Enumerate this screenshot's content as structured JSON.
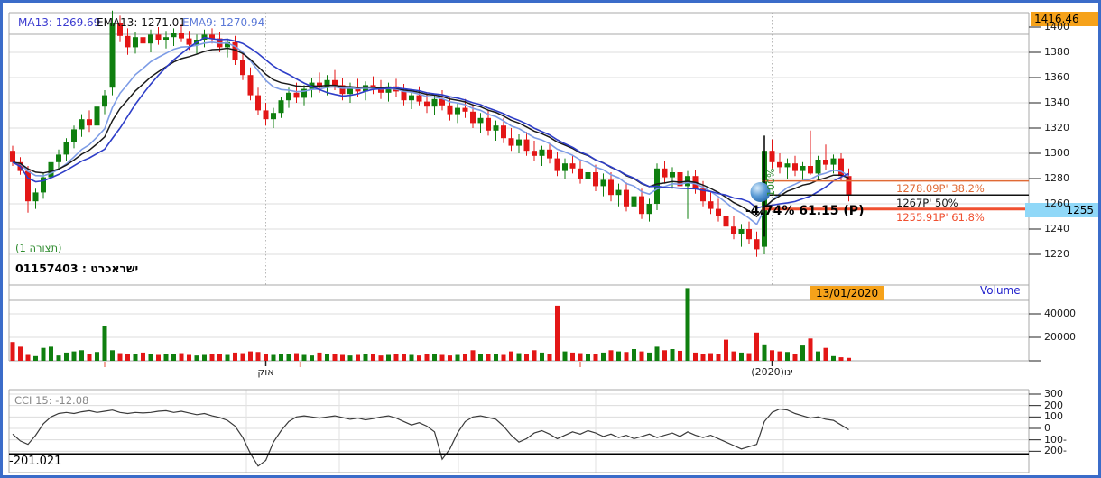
{
  "window": {
    "border_color": "#3b6cc9"
  },
  "legend": {
    "ma13_label": "MA13: 1269.69",
    "ema13_label": "EMA13: 1271.01",
    "ema9_label": "EMA9: 1270.94"
  },
  "labels": {
    "config": "(תצורה 1)",
    "instrument": "01157403 : ישראכרט",
    "date_marker": "13/01/2020",
    "volume_title": "Volume",
    "cci_title": "CCI 15: -12.08",
    "cci_low": "-201.021"
  },
  "colors": {
    "up": "#0f7f0f",
    "down": "#e31616",
    "ma13": "#2e3ec8",
    "ema13": "#1a1a1a",
    "ema9": "#7d9ce6",
    "legend_ma13": "#3b3bd0",
    "legend_ema13": "#101010",
    "legend_ema9": "#5c7ad8",
    "fib_382": "#e06a35",
    "fib_50": "#111111",
    "fib_618": "#f05030",
    "marker_bg": "#f6a21a",
    "band_bg": "#90d8f8",
    "volume_title": "#2323cc",
    "config_green": "#2e8b2e",
    "cci_line": "#3a3a3a",
    "grid": "#dcdcdc",
    "border": "#a8a8a8"
  },
  "chart_data": {
    "type": "candlestick",
    "title": "01157403 : ישראכרט",
    "panes": [
      "price with MA13/EMA13/EMA9 overlays and Fibonacci retracement",
      "volume",
      "CCI 15"
    ],
    "price_axis_ticks": [
      1400,
      1380,
      1360,
      1340,
      1320,
      1300,
      1280,
      1260,
      1240,
      1220
    ],
    "volume_axis_ticks": [
      40000,
      20000
    ],
    "cci_axis_ticks": [
      "300",
      "200",
      "100",
      "0",
      "100-",
      "200-"
    ],
    "cci_axis_values": [
      300,
      200,
      100,
      0,
      -100,
      -200
    ],
    "x_axis_ticks": [
      {
        "label": "אוק",
        "index": 33
      },
      {
        "label": "ינו(2020)",
        "index": 99
      }
    ],
    "event_tick_indices": [
      12,
      37.5,
      74
    ],
    "axis_markers": {
      "high": "1416.46",
      "band": "1255",
      "band_value": 1255,
      "high_value": 1416.46
    },
    "indicator": {
      "name": "CCI",
      "period": 15,
      "last": -12.08,
      "low_marker": -201.021
    },
    "overlays": {
      "ma13_last": 1269.69,
      "ema13_last": 1271.01,
      "ema9_last": 1270.94
    },
    "fibonacci": {
      "range_high": 1314,
      "range_low": 1220,
      "anchor_index": 98,
      "levels": [
        {
          "price": 1278.09,
          "pct": "38.2%",
          "display": "1278.09P'  38.2%"
        },
        {
          "price": 1267,
          "pct": "50%",
          "display": "1267P'  50%"
        },
        {
          "price": 1255.91,
          "pct": "61.8%",
          "display": "1255.91P'  61.8%"
        }
      ],
      "info": "-4.74% 61.15 (P)",
      "pct100": "100%"
    },
    "candles": [
      [
        1302,
        1306,
        1290,
        1293
      ],
      [
        1293,
        1297,
        1283,
        1286
      ],
      [
        1286,
        1290,
        1253,
        1262
      ],
      [
        1262,
        1272,
        1256,
        1269
      ],
      [
        1269,
        1284,
        1264,
        1281
      ],
      [
        1281,
        1296,
        1277,
        1293
      ],
      [
        1293,
        1303,
        1287,
        1299
      ],
      [
        1299,
        1312,
        1294,
        1309
      ],
      [
        1309,
        1322,
        1304,
        1319
      ],
      [
        1319,
        1331,
        1313,
        1327
      ],
      [
        1327,
        1334,
        1317,
        1322
      ],
      [
        1322,
        1341,
        1318,
        1337
      ],
      [
        1337,
        1350,
        1331,
        1346
      ],
      [
        1352,
        1413,
        1346,
        1403
      ],
      [
        1403,
        1409,
        1388,
        1393
      ],
      [
        1393,
        1399,
        1378,
        1384
      ],
      [
        1384,
        1396,
        1379,
        1392
      ],
      [
        1392,
        1404,
        1381,
        1387
      ],
      [
        1387,
        1398,
        1380,
        1394
      ],
      [
        1394,
        1400,
        1386,
        1390
      ],
      [
        1390,
        1397,
        1383,
        1392
      ],
      [
        1392,
        1399,
        1385,
        1395
      ],
      [
        1395,
        1402,
        1388,
        1391
      ],
      [
        1391,
        1397,
        1382,
        1386
      ],
      [
        1386,
        1394,
        1379,
        1390
      ],
      [
        1390,
        1398,
        1384,
        1394
      ],
      [
        1394,
        1399,
        1387,
        1391
      ],
      [
        1391,
        1396,
        1380,
        1384
      ],
      [
        1384,
        1391,
        1376,
        1388
      ],
      [
        1388,
        1393,
        1370,
        1374
      ],
      [
        1374,
        1380,
        1358,
        1362
      ],
      [
        1362,
        1368,
        1342,
        1346
      ],
      [
        1346,
        1352,
        1330,
        1334
      ],
      [
        1334,
        1340,
        1322,
        1327
      ],
      [
        1327,
        1336,
        1320,
        1332
      ],
      [
        1332,
        1345,
        1328,
        1342
      ],
      [
        1342,
        1352,
        1336,
        1348
      ],
      [
        1348,
        1356,
        1340,
        1344
      ],
      [
        1344,
        1354,
        1338,
        1351
      ],
      [
        1351,
        1360,
        1344,
        1356
      ],
      [
        1356,
        1364,
        1348,
        1352
      ],
      [
        1352,
        1362,
        1346,
        1358
      ],
      [
        1358,
        1366,
        1350,
        1354
      ],
      [
        1354,
        1360,
        1342,
        1347
      ],
      [
        1347,
        1356,
        1340,
        1352
      ],
      [
        1352,
        1359,
        1345,
        1349
      ],
      [
        1349,
        1357,
        1342,
        1354
      ],
      [
        1354,
        1361,
        1347,
        1351
      ],
      [
        1351,
        1358,
        1343,
        1348
      ],
      [
        1348,
        1356,
        1341,
        1353
      ],
      [
        1353,
        1359,
        1345,
        1349
      ],
      [
        1349,
        1355,
        1338,
        1342
      ],
      [
        1342,
        1350,
        1335,
        1346
      ],
      [
        1346,
        1353,
        1338,
        1341
      ],
      [
        1341,
        1348,
        1332,
        1337
      ],
      [
        1337,
        1346,
        1330,
        1343
      ],
      [
        1343,
        1350,
        1334,
        1338
      ],
      [
        1338,
        1344,
        1326,
        1331
      ],
      [
        1331,
        1340,
        1324,
        1336
      ],
      [
        1336,
        1343,
        1328,
        1333
      ],
      [
        1333,
        1339,
        1320,
        1324
      ],
      [
        1324,
        1332,
        1316,
        1328
      ],
      [
        1328,
        1334,
        1314,
        1318
      ],
      [
        1318,
        1326,
        1310,
        1322
      ],
      [
        1322,
        1328,
        1308,
        1312
      ],
      [
        1312,
        1320,
        1302,
        1306
      ],
      [
        1306,
        1315,
        1300,
        1311
      ],
      [
        1311,
        1317,
        1298,
        1302
      ],
      [
        1302,
        1310,
        1294,
        1298
      ],
      [
        1298,
        1306,
        1290,
        1303
      ],
      [
        1303,
        1308,
        1292,
        1296
      ],
      [
        1296,
        1301,
        1282,
        1286
      ],
      [
        1286,
        1296,
        1280,
        1292
      ],
      [
        1292,
        1298,
        1284,
        1288
      ],
      [
        1288,
        1294,
        1276,
        1280
      ],
      [
        1280,
        1290,
        1274,
        1285
      ],
      [
        1285,
        1291,
        1270,
        1274
      ],
      [
        1274,
        1284,
        1266,
        1279
      ],
      [
        1279,
        1285,
        1262,
        1267
      ],
      [
        1267,
        1276,
        1258,
        1271
      ],
      [
        1271,
        1277,
        1254,
        1258
      ],
      [
        1258,
        1270,
        1252,
        1266
      ],
      [
        1266,
        1272,
        1248,
        1252
      ],
      [
        1252,
        1264,
        1246,
        1260
      ],
      [
        1260,
        1292,
        1255,
        1288
      ],
      [
        1288,
        1294,
        1276,
        1281
      ],
      [
        1281,
        1289,
        1272,
        1285
      ],
      [
        1285,
        1292,
        1270,
        1274
      ],
      [
        1274,
        1286,
        1248,
        1282
      ],
      [
        1282,
        1287,
        1268,
        1272
      ],
      [
        1272,
        1278,
        1258,
        1262
      ],
      [
        1262,
        1270,
        1252,
        1256
      ],
      [
        1256,
        1264,
        1246,
        1250
      ],
      [
        1250,
        1257,
        1238,
        1242
      ],
      [
        1242,
        1250,
        1232,
        1236
      ],
      [
        1236,
        1244,
        1226,
        1240
      ],
      [
        1240,
        1246,
        1228,
        1232
      ],
      [
        1232,
        1238,
        1218,
        1224
      ],
      [
        1226,
        1314,
        1220,
        1302
      ],
      [
        1302,
        1311,
        1288,
        1293
      ],
      [
        1293,
        1300,
        1284,
        1289
      ],
      [
        1289,
        1296,
        1280,
        1292
      ],
      [
        1292,
        1298,
        1282,
        1286
      ],
      [
        1286,
        1293,
        1278,
        1290
      ],
      [
        1290,
        1318,
        1283,
        1284
      ],
      [
        1284,
        1298,
        1279,
        1295
      ],
      [
        1295,
        1307,
        1287,
        1291
      ],
      [
        1291,
        1299,
        1284,
        1296
      ],
      [
        1296,
        1300,
        1278,
        1282
      ],
      [
        1282,
        1288,
        1262,
        1267
      ]
    ],
    "volumes": [
      16000,
      12000,
      5000,
      4000,
      11000,
      12000,
      4500,
      7000,
      8000,
      9000,
      6000,
      7500,
      30000,
      9000,
      6500,
      6000,
      5500,
      7000,
      6000,
      5000,
      5500,
      6000,
      6500,
      5000,
      4500,
      5000,
      5500,
      6000,
      5000,
      7000,
      6500,
      8000,
      7500,
      6000,
      5000,
      5500,
      6000,
      6500,
      5000,
      4500,
      7000,
      6000,
      5500,
      5000,
      4500,
      5000,
      6000,
      5500,
      4500,
      5000,
      5500,
      6000,
      5000,
      4500,
      5500,
      6000,
      5000,
      4500,
      5000,
      5500,
      9000,
      6000,
      5500,
      6000,
      5000,
      8000,
      6500,
      6000,
      9000,
      7000,
      6000,
      47000,
      8000,
      7000,
      6500,
      6000,
      5500,
      7000,
      9000,
      8000,
      7500,
      10000,
      8000,
      7000,
      12000,
      9000,
      10000,
      8500,
      62000,
      7000,
      6000,
      6500,
      5500,
      18000,
      8000,
      7000,
      6500,
      24000,
      14000,
      9000,
      8000,
      7500,
      6000,
      13000,
      19000,
      8000,
      11000,
      4000,
      3000,
      2500
    ],
    "cci": [
      -50,
      -110,
      -140,
      -60,
      40,
      100,
      130,
      140,
      130,
      145,
      155,
      140,
      150,
      160,
      140,
      130,
      140,
      135,
      140,
      150,
      155,
      140,
      150,
      135,
      120,
      130,
      110,
      95,
      70,
      20,
      -80,
      -220,
      -330,
      -280,
      -120,
      -20,
      60,
      100,
      110,
      100,
      90,
      100,
      110,
      95,
      80,
      90,
      75,
      85,
      100,
      110,
      90,
      60,
      30,
      50,
      20,
      -30,
      -270,
      -180,
      -40,
      60,
      100,
      110,
      95,
      80,
      20,
      -60,
      -120,
      -90,
      -40,
      -20,
      -50,
      -90,
      -60,
      -30,
      -50,
      -20,
      -40,
      -70,
      -50,
      -80,
      -60,
      -90,
      -70,
      -50,
      -80,
      -60,
      -40,
      -70,
      -30,
      -60,
      -80,
      -60,
      -90,
      -120,
      -150,
      -180,
      -160,
      -140,
      60,
      140,
      170,
      160,
      130,
      110,
      90,
      100,
      80,
      70,
      30,
      -12
    ]
  }
}
